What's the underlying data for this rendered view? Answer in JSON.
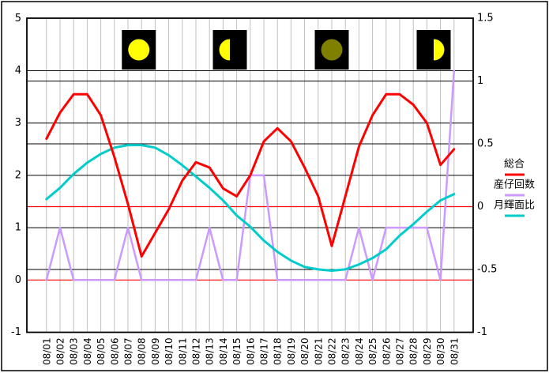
{
  "chart_data": {
    "type": "line",
    "title": "",
    "x_labels": [
      "08/01",
      "08/02",
      "08/03",
      "08/04",
      "08/05",
      "08/06",
      "08/07",
      "08/08",
      "08/09",
      "08/10",
      "08/11",
      "08/12",
      "08/13",
      "08/14",
      "08/15",
      "08/16",
      "08/17",
      "08/18",
      "08/19",
      "08/20",
      "08/21",
      "08/22",
      "08/23",
      "08/24",
      "08/25",
      "08/26",
      "08/27",
      "08/28",
      "08/29",
      "08/30",
      "08/31"
    ],
    "series": [
      {
        "name": "総合",
        "axis": "left",
        "color": "#FF0000",
        "values": [
          2.7,
          3.2,
          3.55,
          3.55,
          3.15,
          2.35,
          1.45,
          0.45,
          0.9,
          1.35,
          1.9,
          2.25,
          2.15,
          1.75,
          1.6,
          2.0,
          2.65,
          2.9,
          2.65,
          2.15,
          1.6,
          0.65,
          1.6,
          2.55,
          3.15,
          3.55,
          3.55,
          3.35,
          3.0,
          2.2,
          2.5
        ]
      },
      {
        "name": "産仔回数",
        "axis": "left",
        "color": "#CC99FF",
        "values": [
          0,
          1,
          0,
          0,
          0,
          0,
          1,
          0,
          0,
          0,
          0,
          0,
          1,
          0,
          0,
          2,
          2,
          0,
          0,
          0,
          0,
          0,
          0,
          1,
          0,
          1,
          1,
          1,
          1,
          0,
          4
        ]
      },
      {
        "name": "月輝面比",
        "axis": "right",
        "color": "#00CCCC",
        "values": [
          0.06,
          0.15,
          0.26,
          0.35,
          0.42,
          0.47,
          0.49,
          0.49,
          0.47,
          0.41,
          0.33,
          0.24,
          0.15,
          0.05,
          -0.07,
          -0.16,
          -0.27,
          -0.36,
          -0.43,
          -0.48,
          -0.5,
          -0.51,
          -0.5,
          -0.46,
          -0.41,
          -0.34,
          -0.23,
          -0.14,
          -0.04,
          0.05,
          0.1
        ]
      }
    ],
    "left_axis": {
      "min": -1,
      "max": 5,
      "tick_labels": [
        "5",
        "4",
        "3",
        "2",
        "1",
        "0",
        "-1"
      ],
      "tick_values": [
        5,
        4,
        3,
        2,
        1,
        0,
        -1
      ],
      "zero_line_color": "#FF0000"
    },
    "right_axis": {
      "min": -1,
      "max": 1.5,
      "tick_labels": [
        "1.5",
        "1",
        "0.5",
        "0",
        "-0.5",
        "-1"
      ],
      "tick_values": [
        1.5,
        1,
        0.5,
        0,
        -0.5,
        -1
      ],
      "zero_line_color": "#FF0000"
    },
    "grid": {
      "vertical": true,
      "horizontal_black_left": [
        4,
        3,
        2,
        1
      ],
      "horizontal_black_right": [
        1,
        0.5,
        -0.5
      ]
    },
    "legend": {
      "position": "right",
      "entries": [
        "総合",
        "産仔回数",
        "月輝面比"
      ]
    },
    "moons": [
      {
        "phase": "full",
        "date_index": 7.8
      },
      {
        "phase": "last-quarter",
        "date_index": 14.5
      },
      {
        "phase": "new",
        "date_index": 22.0
      },
      {
        "phase": "first-quarter",
        "date_index": 29.5
      }
    ],
    "colors": {
      "grid_gray": "#C0C0C0",
      "axis_black": "#000000",
      "zero_red": "#FF0000",
      "moon_yellow": "#FFFF00",
      "new_moon_olive": "#808000",
      "moon_box": "#000000"
    }
  }
}
